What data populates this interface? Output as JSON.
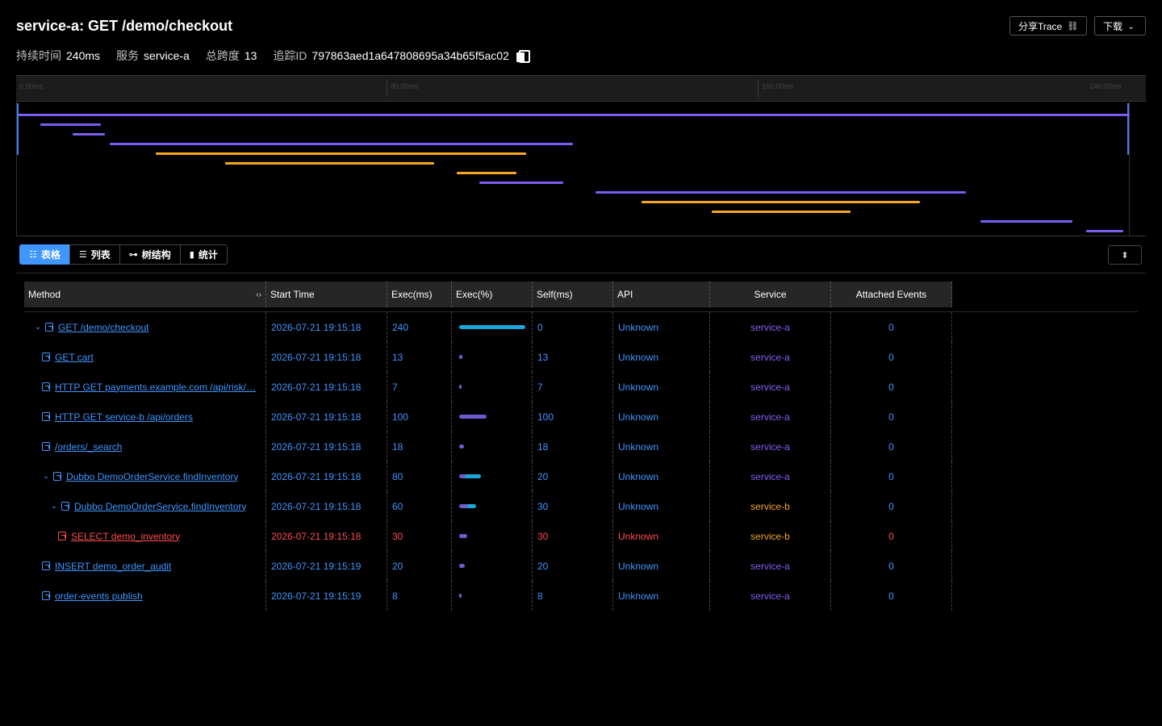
{
  "header": {
    "title": "service-a: GET /demo/checkout",
    "share_label": "分享Trace",
    "download_label": "下载",
    "meta": {
      "duration_label": "持续时间",
      "duration_value": "240ms",
      "service_label": "服务",
      "service_value": "service-a",
      "spans_label": "总跨度",
      "spans_value": "13",
      "trace_id_label": "追踪ID",
      "trace_id_value": "797863aed1a647808695a34b65f5ac02"
    }
  },
  "timeline": {
    "ticks": [
      "0.00ms",
      "80.00ms",
      "160.00ms",
      "240.00ms"
    ],
    "total_ms": 240,
    "spans": [
      {
        "start": 0,
        "duration": 240,
        "color": "#7b5cf0"
      },
      {
        "start": 4.9,
        "duration": 13,
        "color": "#7b5cf0"
      },
      {
        "start": 11.8,
        "duration": 7,
        "color": "#7b5cf0"
      },
      {
        "start": 19.8,
        "duration": 100,
        "color": "#7b5cf0"
      },
      {
        "start": 29.8,
        "duration": 80,
        "color": "#f5a623"
      },
      {
        "start": 44.8,
        "duration": 45,
        "color": "#f5a623"
      },
      {
        "start": 94.7,
        "duration": 13,
        "color": "#f5a623"
      },
      {
        "start": 99.7,
        "duration": 18,
        "color": "#7b5cf0"
      },
      {
        "start": 124.7,
        "duration": 80,
        "color": "#7b5cf0"
      },
      {
        "start": 134.7,
        "duration": 60,
        "color": "#f5a623"
      },
      {
        "start": 149.7,
        "duration": 30,
        "color": "#f5a623"
      },
      {
        "start": 207.7,
        "duration": 20,
        "color": "#7b5cf0"
      },
      {
        "start": 230.6,
        "duration": 8,
        "color": "#7b5cf0"
      }
    ]
  },
  "tabs": [
    {
      "label": "表格",
      "icon": "table-icon",
      "glyph": "☷",
      "active": true
    },
    {
      "label": "列表",
      "icon": "list-icon",
      "glyph": "☰",
      "active": false
    },
    {
      "label": "树结构",
      "icon": "tree-icon",
      "glyph": "⊶",
      "active": false
    },
    {
      "label": "统计",
      "icon": "bar-chart-icon",
      "glyph": "▮",
      "active": false
    }
  ],
  "table": {
    "columns": [
      "Method",
      "Start Time",
      "Exec(ms)",
      "Exec(%)",
      "Self(ms)",
      "API",
      "Service",
      "Attached Events"
    ],
    "rows": [
      {
        "method": "GET /demo/checkout",
        "start_time": "2026-07-21 19:15:18",
        "exec_ms": "240",
        "exec_pct": 100,
        "self_pct": 0,
        "self_ms": "0",
        "api": "Unknown",
        "service": "service-a",
        "events": "0",
        "depth": 0,
        "expandable": true,
        "error": false
      },
      {
        "method": "GET cart",
        "start_time": "2026-07-21 19:15:18",
        "exec_ms": "13",
        "exec_pct": 5.4,
        "self_pct": 5.4,
        "self_ms": "13",
        "api": "Unknown",
        "service": "service-a",
        "events": "0",
        "depth": 1,
        "expandable": false,
        "error": false
      },
      {
        "method": "HTTP GET payments.example.com /api/risk/…",
        "start_time": "2026-07-21 19:15:18",
        "exec_ms": "7",
        "exec_pct": 2.9,
        "self_pct": 2.9,
        "self_ms": "7",
        "api": "Unknown",
        "service": "service-a",
        "events": "0",
        "depth": 1,
        "expandable": false,
        "error": false
      },
      {
        "method": "HTTP GET service-b /api/orders",
        "start_time": "2026-07-21 19:15:18",
        "exec_ms": "100",
        "exec_pct": 41.7,
        "self_pct": 41.7,
        "self_ms": "100",
        "api": "Unknown",
        "service": "service-a",
        "events": "0",
        "depth": 1,
        "expandable": false,
        "error": false
      },
      {
        "method": "/orders/_search",
        "start_time": "2026-07-21 19:15:18",
        "exec_ms": "18",
        "exec_pct": 7.5,
        "self_pct": 7.5,
        "self_ms": "18",
        "api": "Unknown",
        "service": "service-a",
        "events": "0",
        "depth": 1,
        "expandable": false,
        "error": false
      },
      {
        "method": "Dubbo DemoOrderService.findInventory",
        "start_time": "2026-07-21 19:15:18",
        "exec_ms": "80",
        "exec_pct": 33.3,
        "self_pct": 8.3,
        "self_ms": "20",
        "api": "Unknown",
        "service": "service-a",
        "events": "0",
        "depth": 1,
        "expandable": true,
        "error": false
      },
      {
        "method": "Dubbo DemoOrderService.findInventory",
        "start_time": "2026-07-21 19:15:18",
        "exec_ms": "60",
        "exec_pct": 25,
        "self_pct": 12.5,
        "self_ms": "30",
        "api": "Unknown",
        "service": "service-b",
        "events": "0",
        "depth": 2,
        "expandable": true,
        "error": false
      },
      {
        "method": "SELECT demo_inventory",
        "start_time": "2026-07-21 19:15:18",
        "exec_ms": "30",
        "exec_pct": 12.5,
        "self_pct": 12.5,
        "self_ms": "30",
        "api": "Unknown",
        "service": "service-b",
        "events": "0",
        "depth": 3,
        "expandable": false,
        "error": true
      },
      {
        "method": "INSERT demo_order_audit",
        "start_time": "2026-07-21 19:15:19",
        "exec_ms": "20",
        "exec_pct": 8.3,
        "self_pct": 8.3,
        "self_ms": "20",
        "api": "Unknown",
        "service": "service-a",
        "events": "0",
        "depth": 1,
        "expandable": false,
        "error": false
      },
      {
        "method": "order-events publish",
        "start_time": "2026-07-21 19:15:19",
        "exec_ms": "8",
        "exec_pct": 3.3,
        "self_pct": 3.3,
        "self_ms": "8",
        "api": "Unknown",
        "service": "service-a",
        "events": "0",
        "depth": 1,
        "expandable": false,
        "error": false
      }
    ]
  }
}
